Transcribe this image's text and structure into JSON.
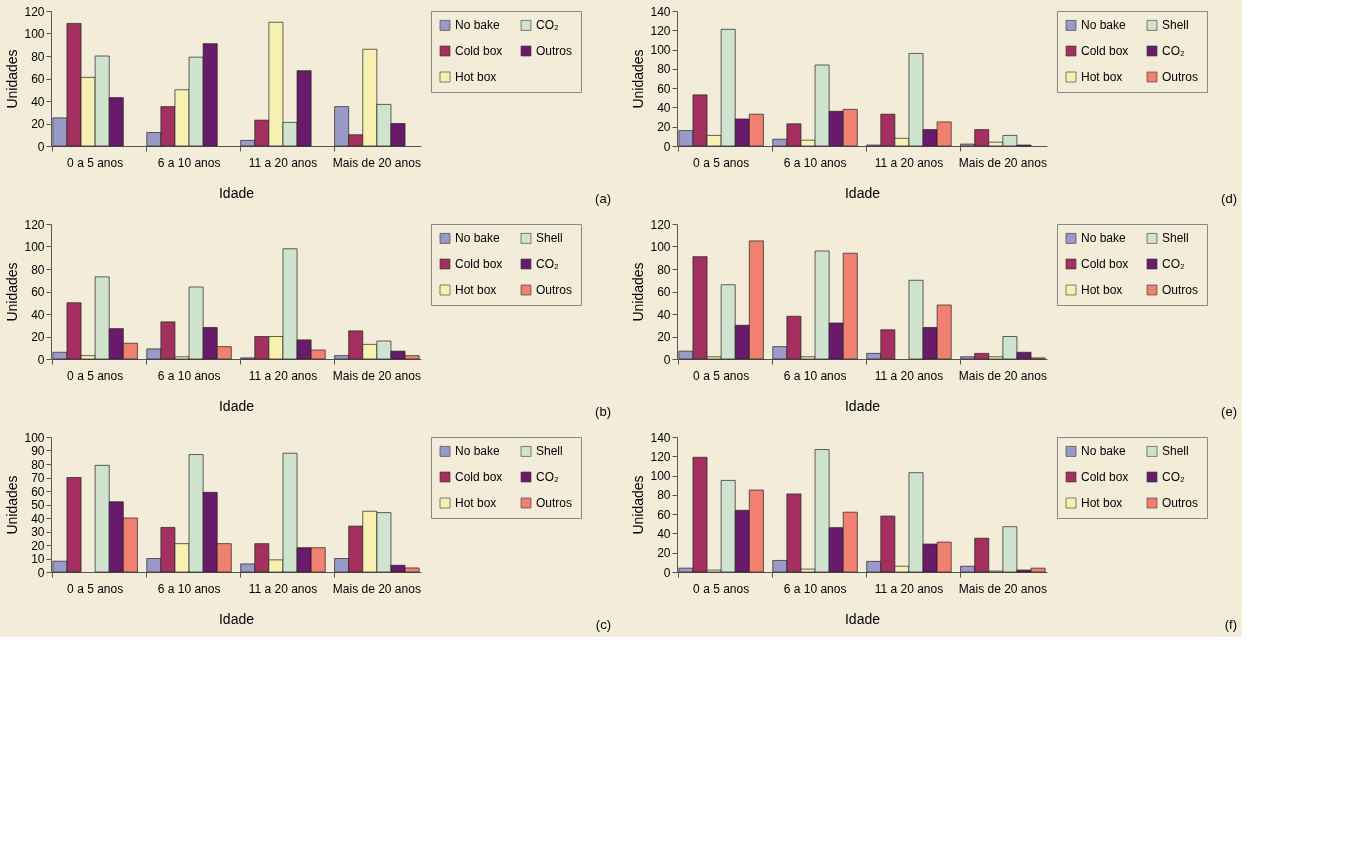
{
  "chart_data": [
    {
      "type": "bar",
      "categories": [
        "0 a 5 anos",
        "6 a 10 anos",
        "11 a 20 anos",
        "Mais de 20 anos"
      ],
      "xlabel": "Idade",
      "ylabel": "Unidades",
      "ylim": [
        0,
        120
      ],
      "yticks": [
        0,
        20,
        40,
        60,
        80,
        100,
        120
      ],
      "grid": false,
      "legend": "top right",
      "annotations": [
        "(a)"
      ],
      "series": [
        {
          "name": "No bake",
          "color": "#9a9ac8",
          "values": [
            25,
            12,
            5,
            35
          ]
        },
        {
          "name": "Cold box",
          "color": "#a3305e",
          "values": [
            109,
            35,
            23,
            10
          ]
        },
        {
          "name": "Hot box",
          "color": "#f7f0b0",
          "values": [
            61,
            50,
            110,
            86
          ]
        },
        {
          "name": "CO₂",
          "color": "#cfe3cf",
          "values": [
            80,
            79,
            21,
            37
          ]
        },
        {
          "name": "Outros",
          "color": "#6a1a6a",
          "values": [
            43,
            91,
            67,
            20
          ]
        }
      ]
    },
    {
      "type": "bar",
      "categories": [
        "0 a 5 anos",
        "6 a 10 anos",
        "11 a 20 anos",
        "Mais de 20 anos"
      ],
      "xlabel": "Idade",
      "ylabel": "Unidades",
      "ylim": [
        0,
        140
      ],
      "yticks": [
        0,
        20,
        40,
        60,
        80,
        100,
        120,
        140
      ],
      "grid": false,
      "legend": "top right",
      "annotations": [
        "(d)"
      ],
      "series": [
        {
          "name": "No bake",
          "color": "#9a9ac8",
          "values": [
            16,
            7,
            1,
            2
          ]
        },
        {
          "name": "Cold box",
          "color": "#a3305e",
          "values": [
            53,
            23,
            33,
            17
          ]
        },
        {
          "name": "Hot box",
          "color": "#f7f0b0",
          "values": [
            11,
            6,
            8,
            4
          ]
        },
        {
          "name": "Shell",
          "color": "#cfe3cf",
          "values": [
            121,
            84,
            96,
            11
          ]
        },
        {
          "name": "CO₂",
          "color": "#6a1a6a",
          "values": [
            28,
            36,
            17,
            1
          ]
        },
        {
          "name": "Outros",
          "color": "#f08070",
          "values": [
            33,
            38,
            25,
            0
          ]
        }
      ]
    },
    {
      "type": "bar",
      "categories": [
        "0 a 5 anos",
        "6 a 10 anos",
        "11 a 20 anos",
        "Mais de 20 anos"
      ],
      "xlabel": "Idade",
      "ylabel": "Unidades",
      "ylim": [
        0,
        120
      ],
      "yticks": [
        0,
        20,
        40,
        60,
        80,
        100,
        120
      ],
      "grid": false,
      "legend": "top right",
      "annotations": [
        "(b)"
      ],
      "series": [
        {
          "name": "No bake",
          "color": "#9a9ac8",
          "values": [
            6,
            9,
            1,
            3
          ]
        },
        {
          "name": "Cold box",
          "color": "#a3305e",
          "values": [
            50,
            33,
            20,
            25
          ]
        },
        {
          "name": "Hot box",
          "color": "#f7f0b0",
          "values": [
            3,
            2,
            20,
            13
          ]
        },
        {
          "name": "Shell",
          "color": "#cfe3cf",
          "values": [
            73,
            64,
            98,
            16
          ]
        },
        {
          "name": "CO₂",
          "color": "#6a1a6a",
          "values": [
            27,
            28,
            17,
            7
          ]
        },
        {
          "name": "Outros",
          "color": "#f08070",
          "values": [
            14,
            11,
            8,
            3
          ]
        }
      ]
    },
    {
      "type": "bar",
      "categories": [
        "0 a 5 anos",
        "6 a 10 anos",
        "11 a 20 anos",
        "Mais de 20 anos"
      ],
      "xlabel": "Idade",
      "ylabel": "Unidades",
      "ylim": [
        0,
        120
      ],
      "yticks": [
        0,
        20,
        40,
        60,
        80,
        100,
        120
      ],
      "grid": false,
      "legend": "top right",
      "annotations": [
        "(e)"
      ],
      "series": [
        {
          "name": "No bake",
          "color": "#9a9ac8",
          "values": [
            7,
            11,
            5,
            2
          ]
        },
        {
          "name": "Cold box",
          "color": "#a3305e",
          "values": [
            91,
            38,
            26,
            5
          ]
        },
        {
          "name": "Hot box",
          "color": "#f7f0b0",
          "values": [
            2,
            2,
            0,
            2
          ]
        },
        {
          "name": "Shell",
          "color": "#cfe3cf",
          "values": [
            66,
            96,
            70,
            20
          ]
        },
        {
          "name": "CO₂",
          "color": "#6a1a6a",
          "values": [
            30,
            32,
            28,
            6
          ]
        },
        {
          "name": "Outros",
          "color": "#f08070",
          "values": [
            105,
            94,
            48,
            1
          ]
        }
      ]
    },
    {
      "type": "bar",
      "categories": [
        "0 a 5 anos",
        "6 a 10 anos",
        "11 a 20 anos",
        "Mais de 20 anos"
      ],
      "xlabel": "Idade",
      "ylabel": "Unidades",
      "ylim": [
        0,
        100
      ],
      "yticks": [
        0,
        10,
        20,
        30,
        40,
        50,
        60,
        70,
        80,
        90,
        100
      ],
      "grid": false,
      "legend": "top right",
      "annotations": [
        "(c)"
      ],
      "series": [
        {
          "name": "No bake",
          "color": "#9a9ac8",
          "values": [
            8,
            10,
            6,
            10
          ]
        },
        {
          "name": "Cold box",
          "color": "#a3305e",
          "values": [
            70,
            33,
            21,
            34
          ]
        },
        {
          "name": "Hot box",
          "color": "#f7f0b0",
          "values": [
            0,
            21,
            9,
            45
          ]
        },
        {
          "name": "Shell",
          "color": "#cfe3cf",
          "values": [
            79,
            87,
            88,
            44
          ]
        },
        {
          "name": "CO₂",
          "color": "#6a1a6a",
          "values": [
            52,
            59,
            18,
            5
          ]
        },
        {
          "name": "Outros",
          "color": "#f08070",
          "values": [
            40,
            21,
            18,
            3
          ]
        }
      ]
    },
    {
      "type": "bar",
      "categories": [
        "0 a 5 anos",
        "6 a 10 anos",
        "11 a 20 anos",
        "Mais de 20 anos"
      ],
      "xlabel": "Idade",
      "ylabel": "Unidades",
      "ylim": [
        0,
        140
      ],
      "yticks": [
        0,
        20,
        40,
        60,
        80,
        100,
        120,
        140
      ],
      "grid": false,
      "legend": "top right",
      "annotations": [
        "(f)"
      ],
      "series": [
        {
          "name": "No bake",
          "color": "#9a9ac8",
          "values": [
            4,
            12,
            11,
            6
          ]
        },
        {
          "name": "Cold box",
          "color": "#a3305e",
          "values": [
            119,
            81,
            58,
            35
          ]
        },
        {
          "name": "Hot box",
          "color": "#f7f0b0",
          "values": [
            2,
            3,
            6,
            1
          ]
        },
        {
          "name": "Shell",
          "color": "#cfe3cf",
          "values": [
            95,
            127,
            103,
            47
          ]
        },
        {
          "name": "CO₂",
          "color": "#6a1a6a",
          "values": [
            64,
            46,
            29,
            2
          ]
        },
        {
          "name": "Outros",
          "color": "#f08070",
          "values": [
            85,
            62,
            31,
            4
          ]
        }
      ]
    }
  ]
}
